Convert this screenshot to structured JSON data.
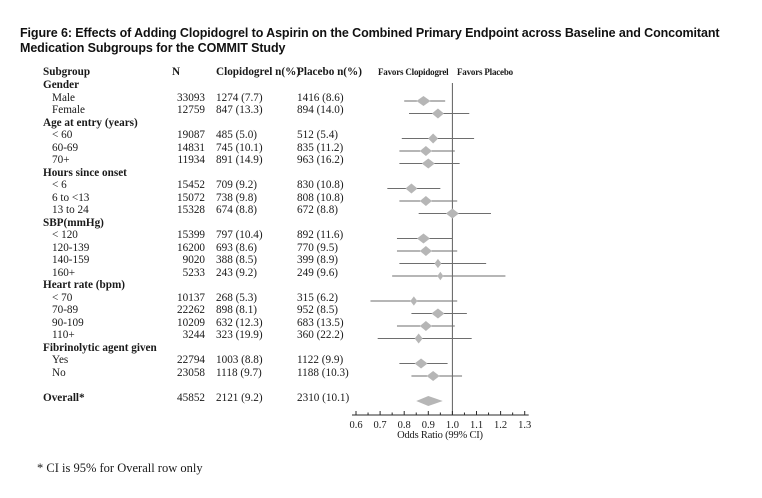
{
  "title": "Figure 6: Effects  of Adding Clopidogrel to Aspirin on the Combined Primary Endpoint across Baseline and Concomitant Medication Subgroups for the COMMIT Study",
  "footnote": "* CI is 95% for Overall row only",
  "table": {
    "headers": {
      "subgroup": "Subgroup",
      "n": "N",
      "clopidogrel": "Clopidogrel n(%)",
      "placebo": "Placebo n(%)"
    }
  },
  "colors": {
    "diamond": "#b6b6b6",
    "ci_line": "#6e6e6e",
    "ref_line": "#5f5f5f",
    "axis": "#2a2a2a",
    "text": "#1a1a1a"
  },
  "chart_data": {
    "type": "forest",
    "favors_left": "Favors Clopidogrel",
    "favors_right": "Favors Placebo",
    "x_axis": {
      "label": "Odds Ratio (99% CI)",
      "ticks": [
        0.6,
        0.7,
        0.8,
        0.9,
        1.0,
        1.1,
        1.2,
        1.3
      ],
      "minor_ticks": [
        0.65,
        0.75,
        0.85,
        0.95,
        1.05,
        1.15,
        1.25
      ],
      "range": [
        0.6,
        1.3
      ],
      "reference_line": 1.0
    },
    "rows": [
      {
        "type": "group",
        "label": "Gender"
      },
      {
        "type": "item",
        "label": "Male",
        "n": "33093",
        "clopidogrel": "1274 (7.7)",
        "placebo": "1416 (8.6)",
        "or": 0.88,
        "ci": [
          0.8,
          0.97
        ],
        "marker_w": 14
      },
      {
        "type": "item",
        "label": "Female",
        "n": "12759",
        "clopidogrel": "847 (13.3)",
        "placebo": "894 (14.0)",
        "or": 0.94,
        "ci": [
          0.82,
          1.07
        ],
        "marker_w": 12
      },
      {
        "type": "group",
        "label": "Age at entry (years)"
      },
      {
        "type": "item",
        "label": "< 60",
        "n": "19087",
        "clopidogrel": "485 (5.0)",
        "placebo": "512 (5.4)",
        "or": 0.92,
        "ci": [
          0.79,
          1.09
        ],
        "marker_w": 10
      },
      {
        "type": "item",
        "label": "60-69",
        "n": "14831",
        "clopidogrel": "745 (10.1)",
        "placebo": "835 (11.2)",
        "or": 0.89,
        "ci": [
          0.78,
          1.01
        ],
        "marker_w": 12
      },
      {
        "type": "item",
        "label": "70+",
        "n": "11934",
        "clopidogrel": "891 (14.9)",
        "placebo": "963 (16.2)",
        "or": 0.9,
        "ci": [
          0.78,
          1.03
        ],
        "marker_w": 13
      },
      {
        "type": "group",
        "label": "Hours since onset"
      },
      {
        "type": "item",
        "label": "< 6",
        "n": "15452",
        "clopidogrel": "709 (9.2)",
        "placebo": "830 (10.8)",
        "or": 0.83,
        "ci": [
          0.73,
          0.95
        ],
        "marker_w": 12
      },
      {
        "type": "item",
        "label": "6 to <13",
        "n": "15072",
        "clopidogrel": "738 (9.8)",
        "placebo": "808 (10.8)",
        "or": 0.89,
        "ci": [
          0.78,
          1.02
        ],
        "marker_w": 12
      },
      {
        "type": "item",
        "label": "13 to 24",
        "n": "15328",
        "clopidogrel": "674 (8.8)",
        "placebo": "672 (8.8)",
        "or": 1.0,
        "ci": [
          0.86,
          1.16
        ],
        "marker_w": 13
      },
      {
        "type": "group",
        "label": "SBP(mmHg)"
      },
      {
        "type": "item",
        "label": "< 120",
        "n": "15399",
        "clopidogrel": "797 (10.4)",
        "placebo": "892 (11.6)",
        "or": 0.88,
        "ci": [
          0.77,
          1.0
        ],
        "marker_w": 13
      },
      {
        "type": "item",
        "label": "120-139",
        "n": "16200",
        "clopidogrel": "693 (8.6)",
        "placebo": "770 (9.5)",
        "or": 0.89,
        "ci": [
          0.77,
          1.02
        ],
        "marker_w": 12
      },
      {
        "type": "item",
        "label": "140-159",
        "n": "9020",
        "clopidogrel": "388 (8.5)",
        "placebo": "399 (8.9)",
        "or": 0.94,
        "ci": [
          0.78,
          1.14
        ],
        "marker_w": 7
      },
      {
        "type": "item",
        "label": "160+",
        "n": "5233",
        "clopidogrel": "243 (9.2)",
        "placebo": "249 (9.6)",
        "or": 0.95,
        "ci": [
          0.75,
          1.22
        ],
        "marker_w": 6
      },
      {
        "type": "group",
        "label": "Heart rate (bpm)"
      },
      {
        "type": "item",
        "label": "< 70",
        "n": "10137",
        "clopidogrel": "268 (5.3)",
        "placebo": "315 (6.2)",
        "or": 0.84,
        "ci": [
          0.66,
          1.02
        ],
        "marker_w": 7
      },
      {
        "type": "item",
        "label": "70-89",
        "n": "22262",
        "clopidogrel": "898 (8.1)",
        "placebo": "952 (8.5)",
        "or": 0.94,
        "ci": [
          0.83,
          1.06
        ],
        "marker_w": 13
      },
      {
        "type": "item",
        "label": "90-109",
        "n": "10209",
        "clopidogrel": "632 (12.3)",
        "placebo": "683 (13.5)",
        "or": 0.89,
        "ci": [
          0.77,
          1.01
        ],
        "marker_w": 12
      },
      {
        "type": "item",
        "label": "110+",
        "n": "3244",
        "clopidogrel": "323 (19.9)",
        "placebo": "360 (22.2)",
        "or": 0.86,
        "ci": [
          0.69,
          1.08
        ],
        "marker_w": 8
      },
      {
        "type": "group",
        "label": "Fibrinolytic agent given"
      },
      {
        "type": "item",
        "label": "Yes",
        "n": "22794",
        "clopidogrel": "1003 (8.8)",
        "placebo": "1122 (9.9)",
        "or": 0.87,
        "ci": [
          0.78,
          0.98
        ],
        "marker_w": 13
      },
      {
        "type": "item",
        "label": "No",
        "n": "23058",
        "clopidogrel": "1118 (9.7)",
        "placebo": "1188 (10.3)",
        "or": 0.92,
        "ci": [
          0.83,
          1.04
        ],
        "marker_w": 13
      },
      {
        "type": "spacer"
      },
      {
        "type": "overall",
        "label": "Overall*",
        "n": "45852",
        "clopidogrel": "2121 (9.2)",
        "placebo": "2310 (10.1)",
        "or": 0.9,
        "ci": [
          0.85,
          0.96
        ]
      }
    ]
  }
}
